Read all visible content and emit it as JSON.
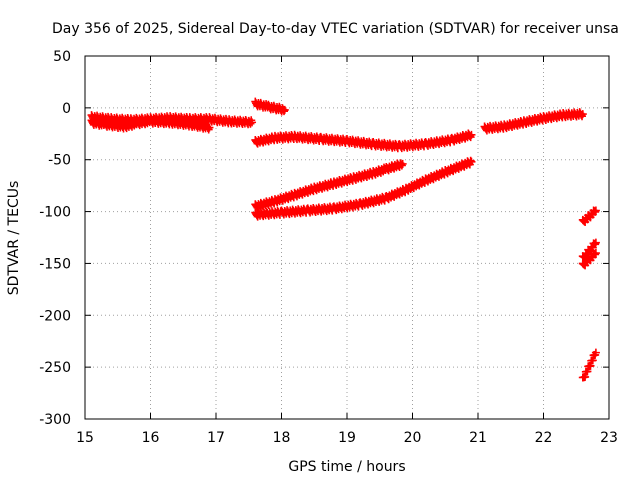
{
  "chart_data": {
    "type": "scatter",
    "title": "Day 356 of 2025, Sidereal Day-to-day VTEC variation (SDTVAR) for receiver unsa",
    "xlabel": "GPS time / hours",
    "ylabel": "SDTVAR / TECUs",
    "xlim": [
      15,
      23
    ],
    "ylim": [
      -300,
      50
    ],
    "x_ticks": [
      15,
      16,
      17,
      18,
      19,
      20,
      21,
      22,
      23
    ],
    "y_ticks": [
      50,
      0,
      -50,
      -100,
      -150,
      -200,
      -250,
      -300
    ],
    "grid": true,
    "marker": "+",
    "color": "#ff0000",
    "series": [
      {
        "x": [
          15.1,
          15.3,
          15.6,
          15.8,
          16.0,
          16.3,
          16.6,
          16.9
        ],
        "y": [
          -14,
          -16,
          -18,
          -15,
          -13,
          -14,
          -16,
          -19
        ]
      },
      {
        "x": [
          15.1,
          15.4,
          15.7,
          16.0,
          16.3,
          16.6,
          16.9,
          17.2,
          17.55
        ],
        "y": [
          -9,
          -11,
          -12,
          -11,
          -10,
          -11,
          -11,
          -13,
          -14
        ]
      },
      {
        "x": [
          17.6,
          17.8,
          18.05
        ],
        "y": [
          4,
          1,
          -2
        ]
      },
      {
        "x": [
          17.6,
          17.9,
          18.2,
          18.6,
          19.0,
          19.4,
          19.8,
          20.2,
          20.6,
          20.9
        ],
        "y": [
          -33,
          -29,
          -28,
          -30,
          -32,
          -35,
          -37,
          -35,
          -31,
          -26
        ]
      },
      {
        "x": [
          17.6,
          17.9,
          18.2,
          18.5,
          18.8,
          19.1,
          19.4,
          19.6,
          19.85
        ],
        "y": [
          -95,
          -90,
          -84,
          -78,
          -73,
          -68,
          -63,
          -59,
          -54
        ]
      },
      {
        "x": [
          17.6,
          18.0,
          18.4,
          18.8,
          19.2,
          19.6,
          19.9,
          20.2,
          20.5,
          20.9
        ],
        "y": [
          -103,
          -101,
          -99,
          -97,
          -93,
          -87,
          -79,
          -70,
          -62,
          -52
        ]
      },
      {
        "x": [
          21.1,
          21.4,
          21.7,
          22.0,
          22.3,
          22.6
        ],
        "y": [
          -20,
          -18,
          -14,
          -10,
          -7,
          -6
        ]
      },
      {
        "x": [
          22.6,
          22.8
        ],
        "y": [
          -110,
          -99
        ]
      },
      {
        "x": [
          22.6,
          22.8
        ],
        "y": [
          -145,
          -130
        ]
      },
      {
        "x": [
          22.6,
          22.8
        ],
        "y": [
          -152,
          -140
        ]
      },
      {
        "x": [
          22.6,
          22.8
        ],
        "y": [
          -262,
          -236
        ]
      }
    ]
  }
}
